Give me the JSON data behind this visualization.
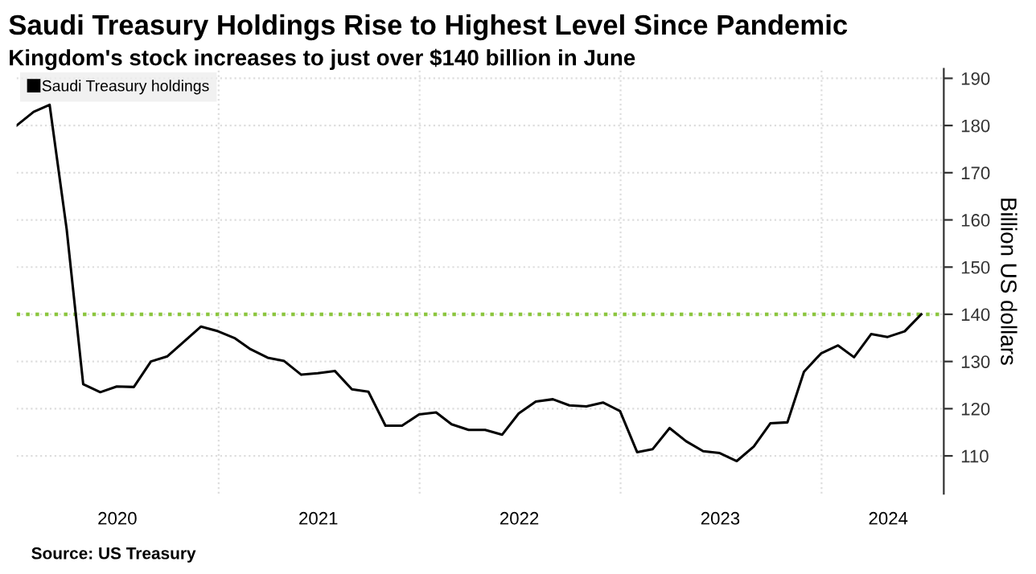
{
  "chart_data": {
    "type": "line",
    "title": "Saudi Treasury Holdings Rise to Highest Level Since Pandemic",
    "subtitle": "Kingdom's stock increases to just over $140 billion in June",
    "ylabel": "Billion US dollars",
    "x": [
      "2019-12-31",
      "2020-01-31",
      "2020-02-29",
      "2020-03-31",
      "2020-04-30",
      "2020-05-31",
      "2020-06-30",
      "2020-07-31",
      "2020-08-31",
      "2020-09-30",
      "2020-10-31",
      "2020-11-30",
      "2020-12-31",
      "2021-01-31",
      "2021-02-28",
      "2021-03-31",
      "2021-04-30",
      "2021-05-31",
      "2021-06-30",
      "2021-07-31",
      "2021-08-31",
      "2021-09-30",
      "2021-10-31",
      "2021-11-30",
      "2021-12-31",
      "2022-01-31",
      "2022-02-28",
      "2022-03-31",
      "2022-04-30",
      "2022-05-31",
      "2022-06-30",
      "2022-07-31",
      "2022-08-31",
      "2022-09-30",
      "2022-10-31",
      "2022-11-30",
      "2022-12-31",
      "2023-01-31",
      "2023-02-28",
      "2023-03-31",
      "2023-04-30",
      "2023-05-31",
      "2023-06-30",
      "2023-07-31",
      "2023-08-31",
      "2023-09-30",
      "2023-10-31",
      "2023-11-30",
      "2023-12-31",
      "2024-01-31",
      "2024-02-29",
      "2024-03-31",
      "2024-04-30",
      "2024-05-31",
      "2024-06-30"
    ],
    "series": [
      {
        "name": "Saudi Treasury holdings",
        "color": "#000000",
        "values": [
          180.0,
          182.9,
          184.4,
          158,
          125.2,
          123.5,
          124.7,
          124.6,
          130.0,
          131.1,
          134.3,
          137.4,
          136.4,
          134.9,
          132.6,
          130.8,
          130.1,
          127.2,
          127.5,
          128.0,
          124.1,
          123.6,
          116.4,
          116.4,
          118.8,
          119.2,
          116.7,
          115.5,
          115.5,
          114.5,
          119.0,
          121.5,
          122.0,
          120.7,
          120.5,
          121.3,
          119.5,
          110.8,
          111.4,
          115.9,
          113.1,
          111.0,
          110.6,
          108.9,
          112.0,
          116.9,
          117.1,
          127.8,
          131.7,
          133.4,
          130.9,
          135.8,
          135.2,
          136.4,
          140.0
        ]
      }
    ],
    "xlim": [
      "2019-12-31",
      "2024-08-10"
    ],
    "ylim": [
      102,
      192
    ],
    "xticks": [
      {
        "value": "2020-07-01",
        "label": "2020"
      },
      {
        "value": "2021-01-01",
        "label": null
      },
      {
        "value": "2021-07-01",
        "label": "2021"
      },
      {
        "value": "2022-01-01",
        "label": null
      },
      {
        "value": "2022-07-01",
        "label": "2022"
      },
      {
        "value": "2023-01-01",
        "label": null
      },
      {
        "value": "2023-07-01",
        "label": "2023"
      },
      {
        "value": "2024-01-01",
        "label": null
      },
      {
        "value": "2024-05-01",
        "label": "2024"
      }
    ],
    "yticks": [
      110,
      120,
      130,
      140,
      150,
      160,
      170,
      180,
      190
    ],
    "ref_lines": [
      {
        "axis": "y",
        "value": 140,
        "color": "#8cc63f",
        "line_style": "dotted"
      }
    ],
    "grid": true,
    "legend": "top left",
    "marker": "none",
    "line_style": "solid",
    "annotations": [
      "Source: US Treasury"
    ]
  }
}
